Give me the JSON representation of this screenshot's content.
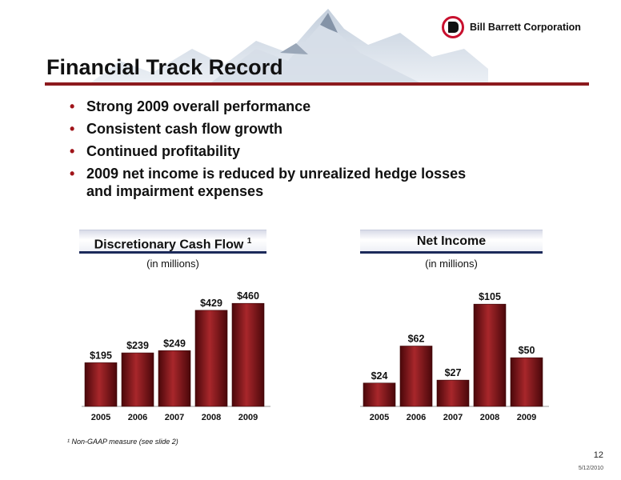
{
  "header": {
    "company_name": "Bill Barrett Corporation",
    "title": "Financial Track Record"
  },
  "bullets": [
    "Strong 2009 overall performance",
    "Consistent cash flow growth",
    "Continued profitability",
    "2009 net income is reduced by unrealized hedge losses and impairment expenses"
  ],
  "bullet_lines": [
    "Strong 2009 overall performance",
    "Consistent cash flow growth",
    "Continued profitability",
    "2009 net income is reduced by unrealized hedge losses",
    "and impairment expenses"
  ],
  "colors": {
    "bar": "#7e1417",
    "bar_dark": "#4a070a",
    "bar_light": "#a8272b",
    "title_rule": "#8c1a1d",
    "header_border": "#1c2a5a"
  },
  "chart_data": [
    {
      "type": "bar",
      "title": "Discretionary Cash Flow",
      "title_superscript": "1",
      "subtitle": "(in millions)",
      "categories": [
        "2005",
        "2006",
        "2007",
        "2008",
        "2009"
      ],
      "values": [
        195,
        239,
        249,
        429,
        460
      ],
      "labels": [
        "$195",
        "$239",
        "$249",
        "$429",
        "$460"
      ],
      "ylim": [
        0,
        500
      ],
      "grid": false
    },
    {
      "type": "bar",
      "title": "Net Income",
      "subtitle": "(in millions)",
      "categories": [
        "2005",
        "2006",
        "2007",
        "2008",
        "2009"
      ],
      "values": [
        24,
        62,
        27,
        105,
        50
      ],
      "labels": [
        "$24",
        "$62",
        "$27",
        "$105",
        "$50"
      ],
      "ylim": [
        0,
        115
      ],
      "grid": false
    }
  ],
  "footer": {
    "footnote": "¹ Non-GAAP measure (see slide 2)",
    "page_number": "12",
    "date": "5/12/2010"
  }
}
